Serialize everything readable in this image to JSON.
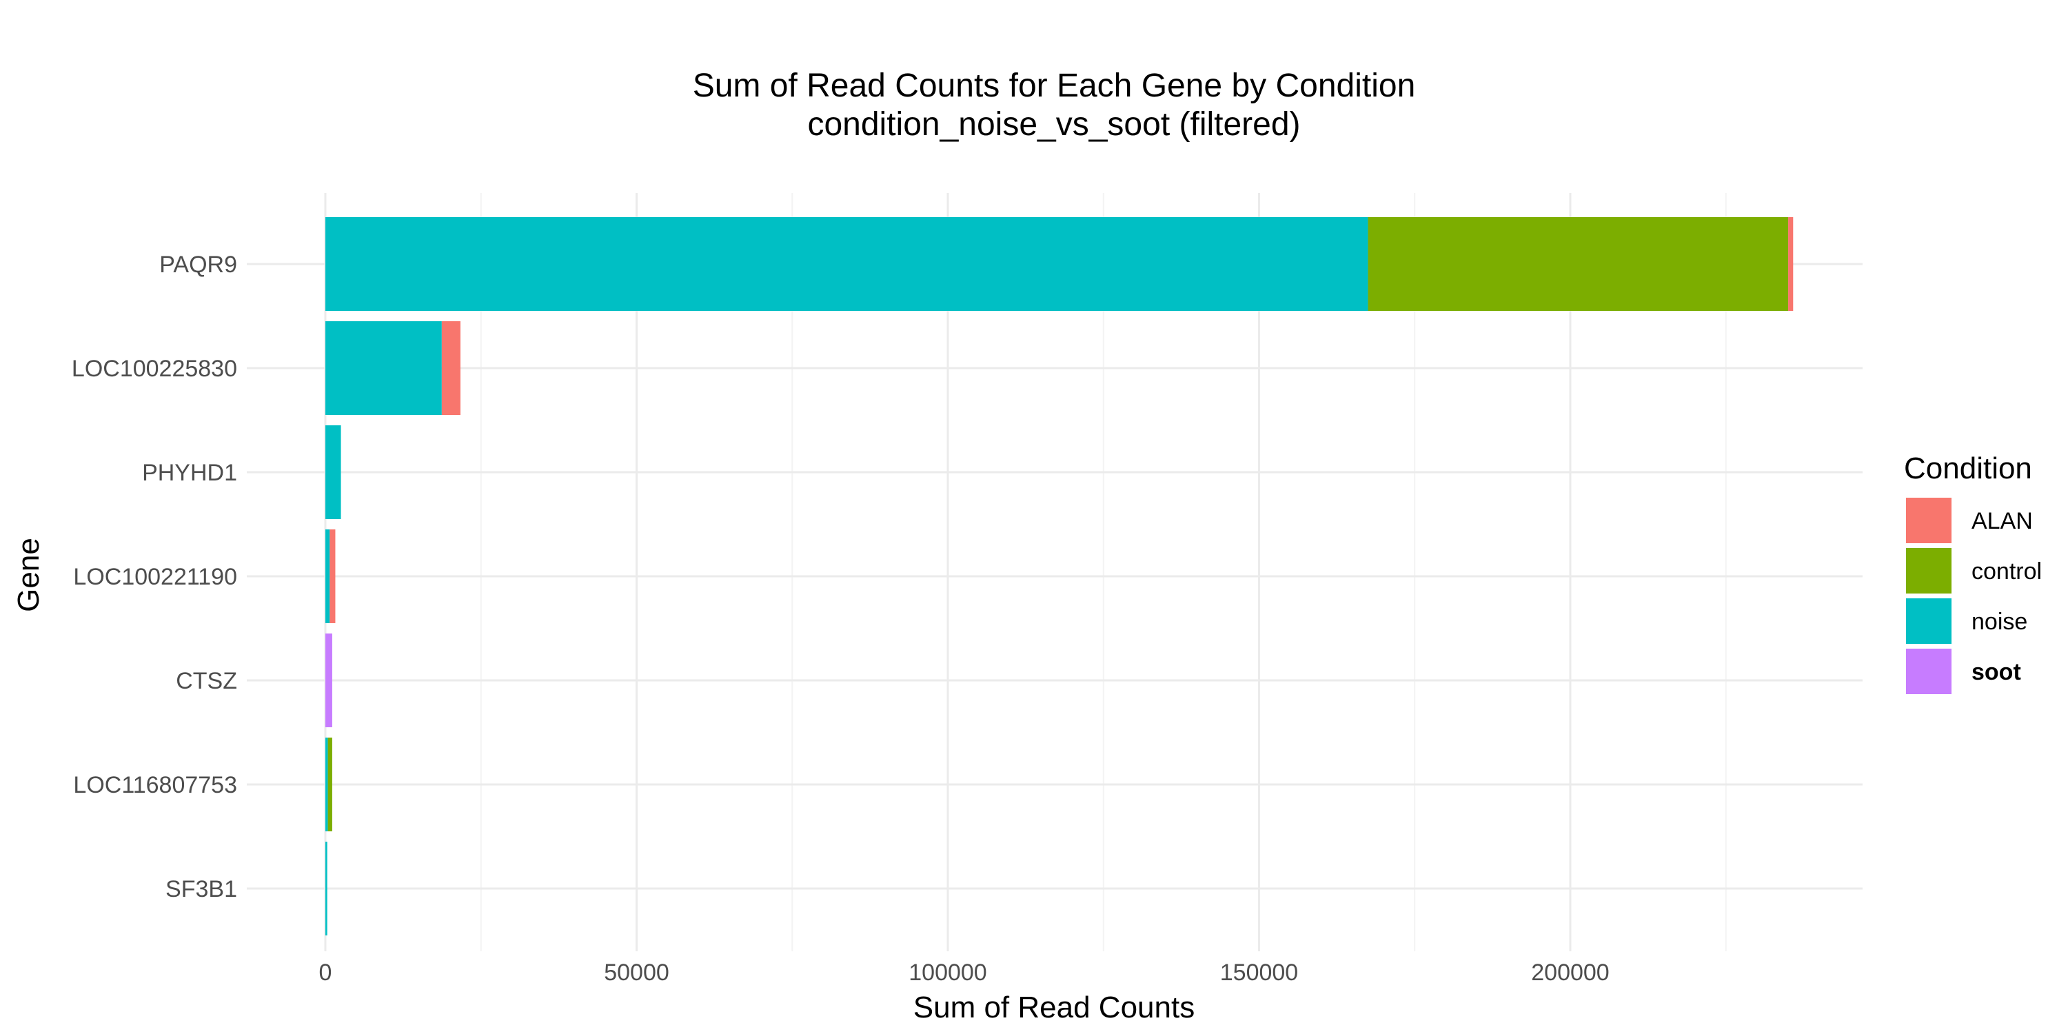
{
  "chart_data": {
    "type": "bar",
    "orientation": "horizontal",
    "stacked": true,
    "title": "Sum of Read Counts for Each Gene by Condition",
    "subtitle": "condition_noise_vs_soot (filtered)",
    "xlabel": "Sum of Read Counts",
    "ylabel": "Gene",
    "xlim": [
      0,
      247000
    ],
    "x_ticks": [
      0,
      50000,
      100000,
      150000,
      200000
    ],
    "x_tick_labels": [
      "0",
      "50000",
      "100000",
      "150000",
      "200000"
    ],
    "grid": true,
    "legend_position": "right",
    "legend_title": "Condition",
    "categories": [
      "PAQR9",
      "LOC100225830",
      "PHYHD1",
      "LOC100221190",
      "CTSZ",
      "LOC116807753",
      "SF3B1"
    ],
    "series": [
      {
        "name": "ALAN",
        "color": "#F8766D",
        "bold_label": false,
        "values": [
          800,
          3000,
          0,
          900,
          0,
          0,
          0
        ]
      },
      {
        "name": "control",
        "color": "#7CAE00",
        "bold_label": false,
        "values": [
          67500,
          0,
          0,
          0,
          0,
          700,
          0
        ]
      },
      {
        "name": "noise",
        "color": "#00BFC4",
        "bold_label": false,
        "values": [
          167500,
          18700,
          2500,
          700,
          0,
          400,
          300
        ]
      },
      {
        "name": "soot",
        "color": "#C77CFF",
        "bold_label": true,
        "values": [
          0,
          0,
          0,
          0,
          1100,
          0,
          0
        ]
      }
    ],
    "stack_order_from_zero": [
      "noise",
      "soot",
      "control",
      "ALAN"
    ]
  },
  "colors": {
    "grid_major": "#EBEBEB",
    "grid_minor": "#F3F3F3",
    "tick_text": "#4D4D4D",
    "background": "#FFFFFF"
  }
}
